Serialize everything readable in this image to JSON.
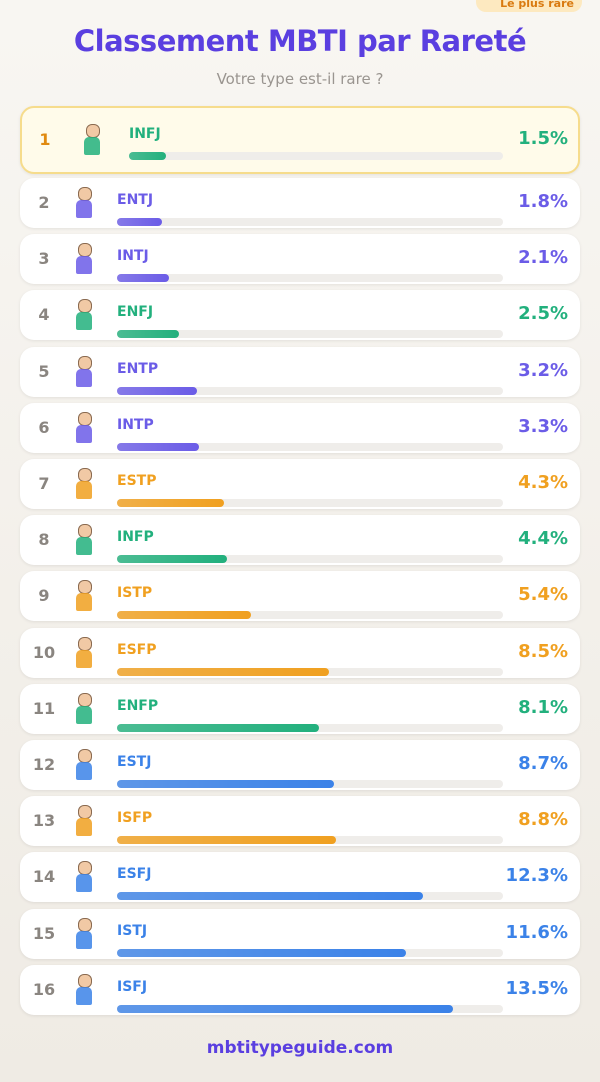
{
  "badge": "Le plus rare",
  "chart_data": {
    "type": "bar",
    "title": "Classement MBTI par Rareté",
    "subtitle": "Votre type est-il rare ?",
    "ranks": [
      1,
      2,
      3,
      4,
      5,
      6,
      7,
      8,
      9,
      10,
      11,
      12,
      13,
      14,
      15,
      16
    ],
    "categories": [
      "INFJ",
      "ENTJ",
      "INTJ",
      "ENFJ",
      "ENTP",
      "INTP",
      "ESTP",
      "INFP",
      "ISTP",
      "ESFP",
      "ENFP",
      "ESTJ",
      "ISFP",
      "ESFJ",
      "ISTJ",
      "ISFJ"
    ],
    "values": [
      1.5,
      1.8,
      2.1,
      2.5,
      3.2,
      3.3,
      4.3,
      4.4,
      5.4,
      8.5,
      8.1,
      8.7,
      8.8,
      12.3,
      11.6,
      13.5
    ],
    "value_labels": [
      "1.5%",
      "1.8%",
      "2.1%",
      "2.5%",
      "3.2%",
      "3.3%",
      "4.3%",
      "4.4%",
      "5.4%",
      "8.5%",
      "8.1%",
      "8.7%",
      "8.8%",
      "12.3%",
      "11.6%",
      "13.5%"
    ],
    "colors": [
      "#22b07d",
      "#6b5ce7",
      "#6b5ce7",
      "#22b07d",
      "#6b5ce7",
      "#6b5ce7",
      "#f0a020",
      "#22b07d",
      "#f0a020",
      "#f0a020",
      "#22b07d",
      "#3b82e8",
      "#f0a020",
      "#3b82e8",
      "#3b82e8",
      "#3b82e8"
    ],
    "xlim": [
      0,
      15.5
    ]
  },
  "footer": "mbtitypeguide.com"
}
